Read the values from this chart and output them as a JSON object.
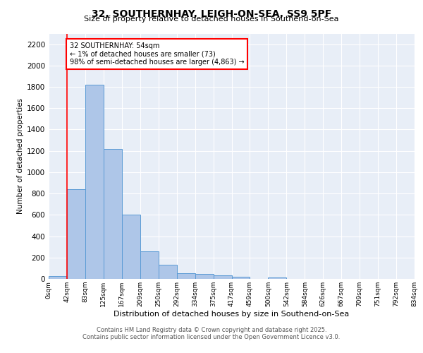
{
  "title_line1": "32, SOUTHERNHAY, LEIGH-ON-SEA, SS9 5PF",
  "title_line2": "Size of property relative to detached houses in Southend-on-Sea",
  "xlabel": "Distribution of detached houses by size in Southend-on-Sea",
  "ylabel": "Number of detached properties",
  "annotation_title": "32 SOUTHERNHAY: 54sqm",
  "annotation_line2": "← 1% of detached houses are smaller (73)",
  "annotation_line3": "98% of semi-detached houses are larger (4,863) →",
  "bin_labels": [
    "0sqm",
    "42sqm",
    "83sqm",
    "125sqm",
    "167sqm",
    "209sqm",
    "250sqm",
    "292sqm",
    "334sqm",
    "375sqm",
    "417sqm",
    "459sqm",
    "500sqm",
    "542sqm",
    "584sqm",
    "626sqm",
    "667sqm",
    "709sqm",
    "751sqm",
    "792sqm",
    "834sqm"
  ],
  "bar_values": [
    25,
    840,
    1820,
    1220,
    600,
    260,
    130,
    50,
    45,
    30,
    18,
    0,
    15,
    0,
    0,
    0,
    0,
    0,
    0,
    0
  ],
  "bar_color": "#aec6e8",
  "bar_edge_color": "#5b9bd5",
  "red_line_x": 1,
  "ylim": [
    0,
    2300
  ],
  "yticks": [
    0,
    200,
    400,
    600,
    800,
    1000,
    1200,
    1400,
    1600,
    1800,
    2000,
    2200
  ],
  "background_color": "#e8eef7",
  "footer_line1": "Contains HM Land Registry data © Crown copyright and database right 2025.",
  "footer_line2": "Contains public sector information licensed under the Open Government Licence v3.0."
}
